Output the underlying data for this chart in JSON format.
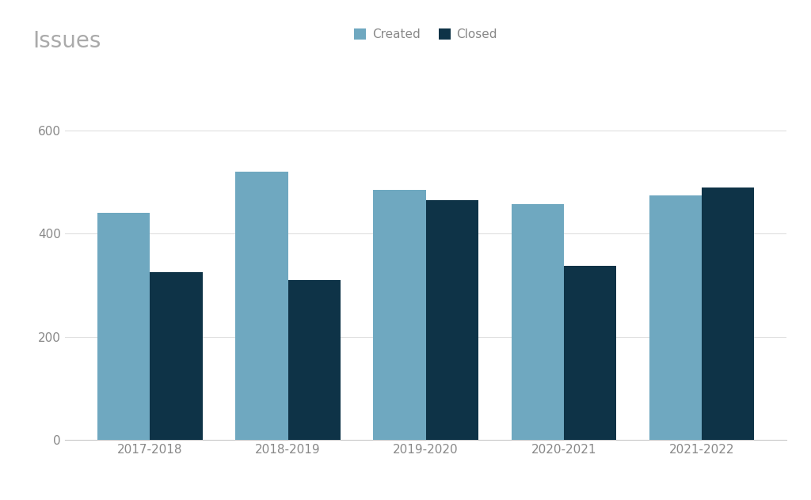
{
  "title": "Issues",
  "categories": [
    "2017-2018",
    "2018-2019",
    "2019-2020",
    "2020-2021",
    "2021-2022"
  ],
  "created": [
    440,
    520,
    485,
    458,
    475
  ],
  "closed": [
    325,
    310,
    465,
    338,
    490
  ],
  "created_color": "#6fa8c0",
  "closed_color": "#0e3347",
  "background_color": "#ffffff",
  "title_fontsize": 20,
  "title_color": "#aaaaaa",
  "tick_color": "#888888",
  "grid_color": "#e0e0e0",
  "legend_labels": [
    "Created",
    "Closed"
  ],
  "ylim": [
    0,
    640
  ],
  "yticks": [
    0,
    200,
    400,
    600
  ],
  "bar_width": 0.38,
  "figsize": [
    10.24,
    6.32
  ],
  "dpi": 100
}
